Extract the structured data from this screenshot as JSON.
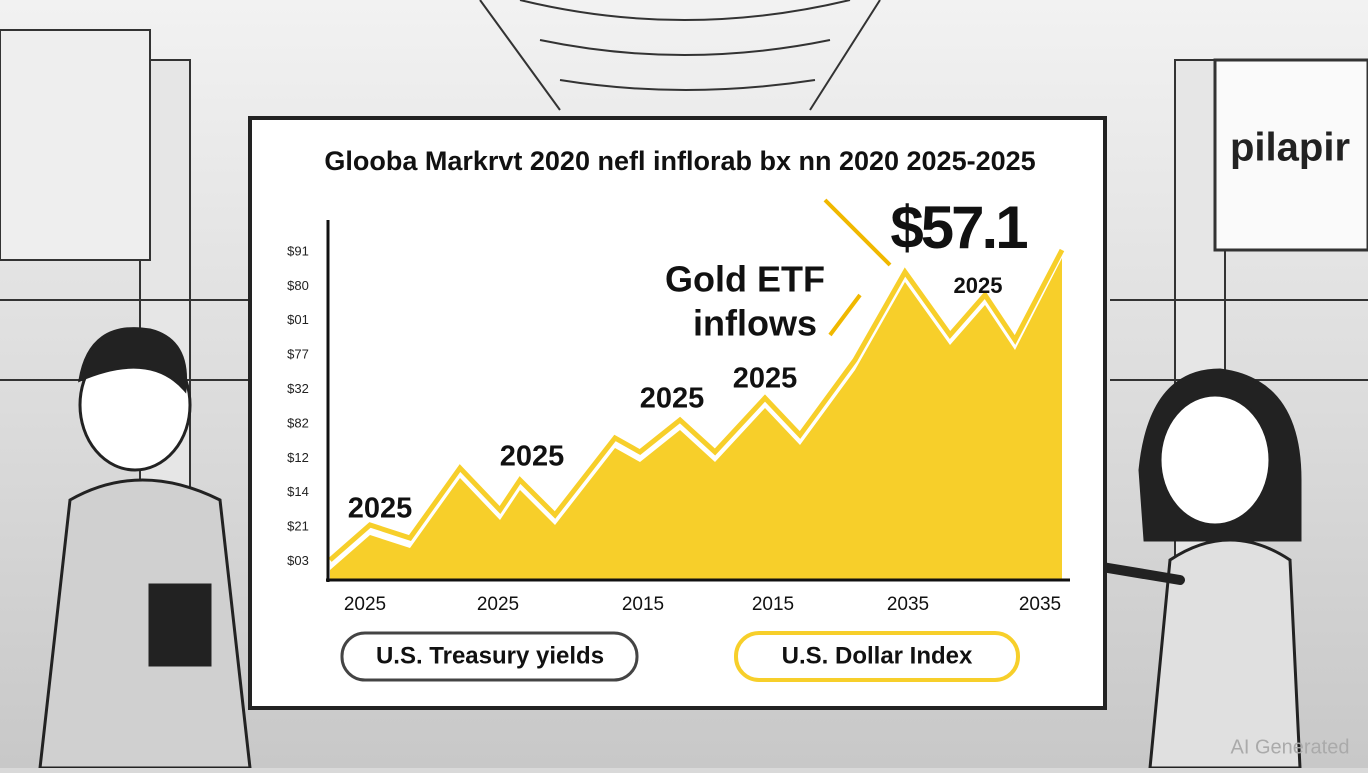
{
  "board": {
    "title": "Glooba Markrvt 2020 nefl inflorab bx nn 2020 2025-2025",
    "y_labels": [
      "$91",
      "$80",
      "$01",
      "$77",
      "$32",
      "$82",
      "$12",
      "$14",
      "$21",
      "$03"
    ],
    "x_labels": [
      "2025",
      "2025",
      "2015",
      "2015",
      "2035",
      "2035"
    ],
    "point_labels": [
      "2025",
      "2025",
      "2025",
      "2025"
    ],
    "callout": {
      "line1": "Gold ETF",
      "line2": "inflows"
    },
    "peak": {
      "value": "$57.1",
      "year": "2025"
    },
    "legend": [
      "U.S. Treasury yields",
      "U.S. Dollar Index"
    ]
  },
  "background": {
    "shop_sign": "pilapir",
    "watermark": "AI Generated"
  }
}
